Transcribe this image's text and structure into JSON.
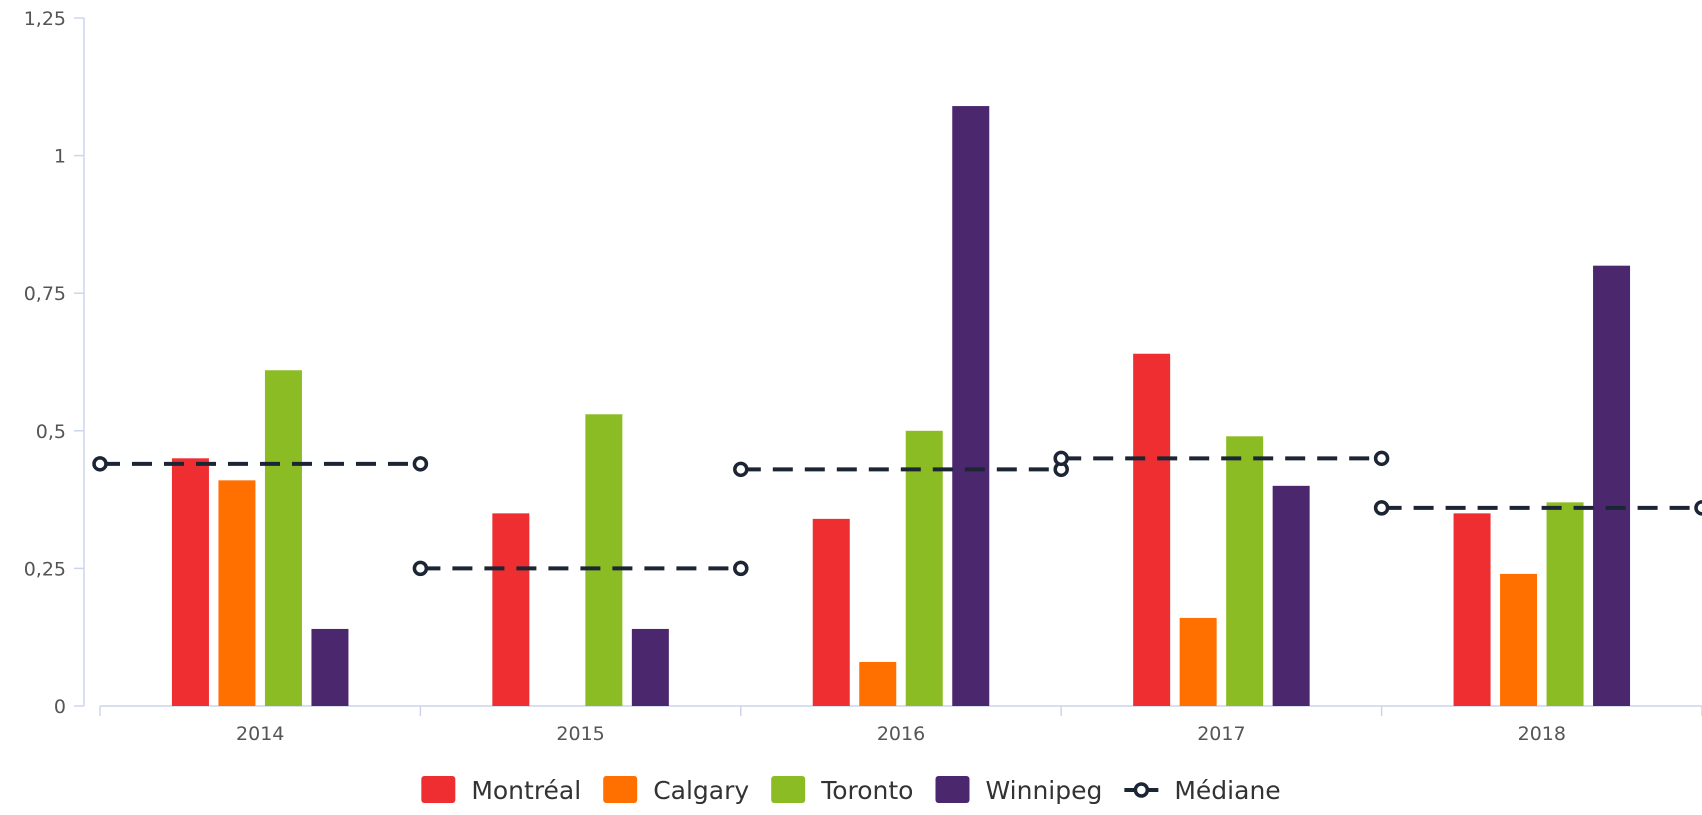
{
  "chart_data": {
    "type": "bar",
    "categories": [
      "2014",
      "2015",
      "2016",
      "2017",
      "2018"
    ],
    "ylim": [
      0,
      1.25
    ],
    "yticks": [
      "0",
      "0,25",
      "0,5",
      "0,75",
      "1",
      "1,25"
    ],
    "ytick_values": [
      0,
      0.25,
      0.5,
      0.75,
      1,
      1.25
    ],
    "grid": false,
    "legend_position": "bottom-center",
    "series": [
      {
        "name": "Montréal",
        "color": "#ee2e31",
        "values": [
          0.45,
          0.35,
          0.34,
          0.64,
          0.35
        ]
      },
      {
        "name": "Calgary",
        "color": "#ff7000",
        "values": [
          0.41,
          0,
          0.08,
          0.16,
          0.24
        ]
      },
      {
        "name": "Toronto",
        "color": "#8cbc24",
        "values": [
          0.61,
          0.53,
          0.5,
          0.49,
          0.37
        ]
      },
      {
        "name": "Winnipeg",
        "color": "#4b276e",
        "values": [
          0.14,
          0.14,
          1.09,
          0.4,
          0.8
        ]
      }
    ],
    "median": {
      "name": "Médiane",
      "color": "#1c2533",
      "values": [
        0.44,
        0.25,
        0.43,
        0.45,
        0.36
      ]
    }
  }
}
